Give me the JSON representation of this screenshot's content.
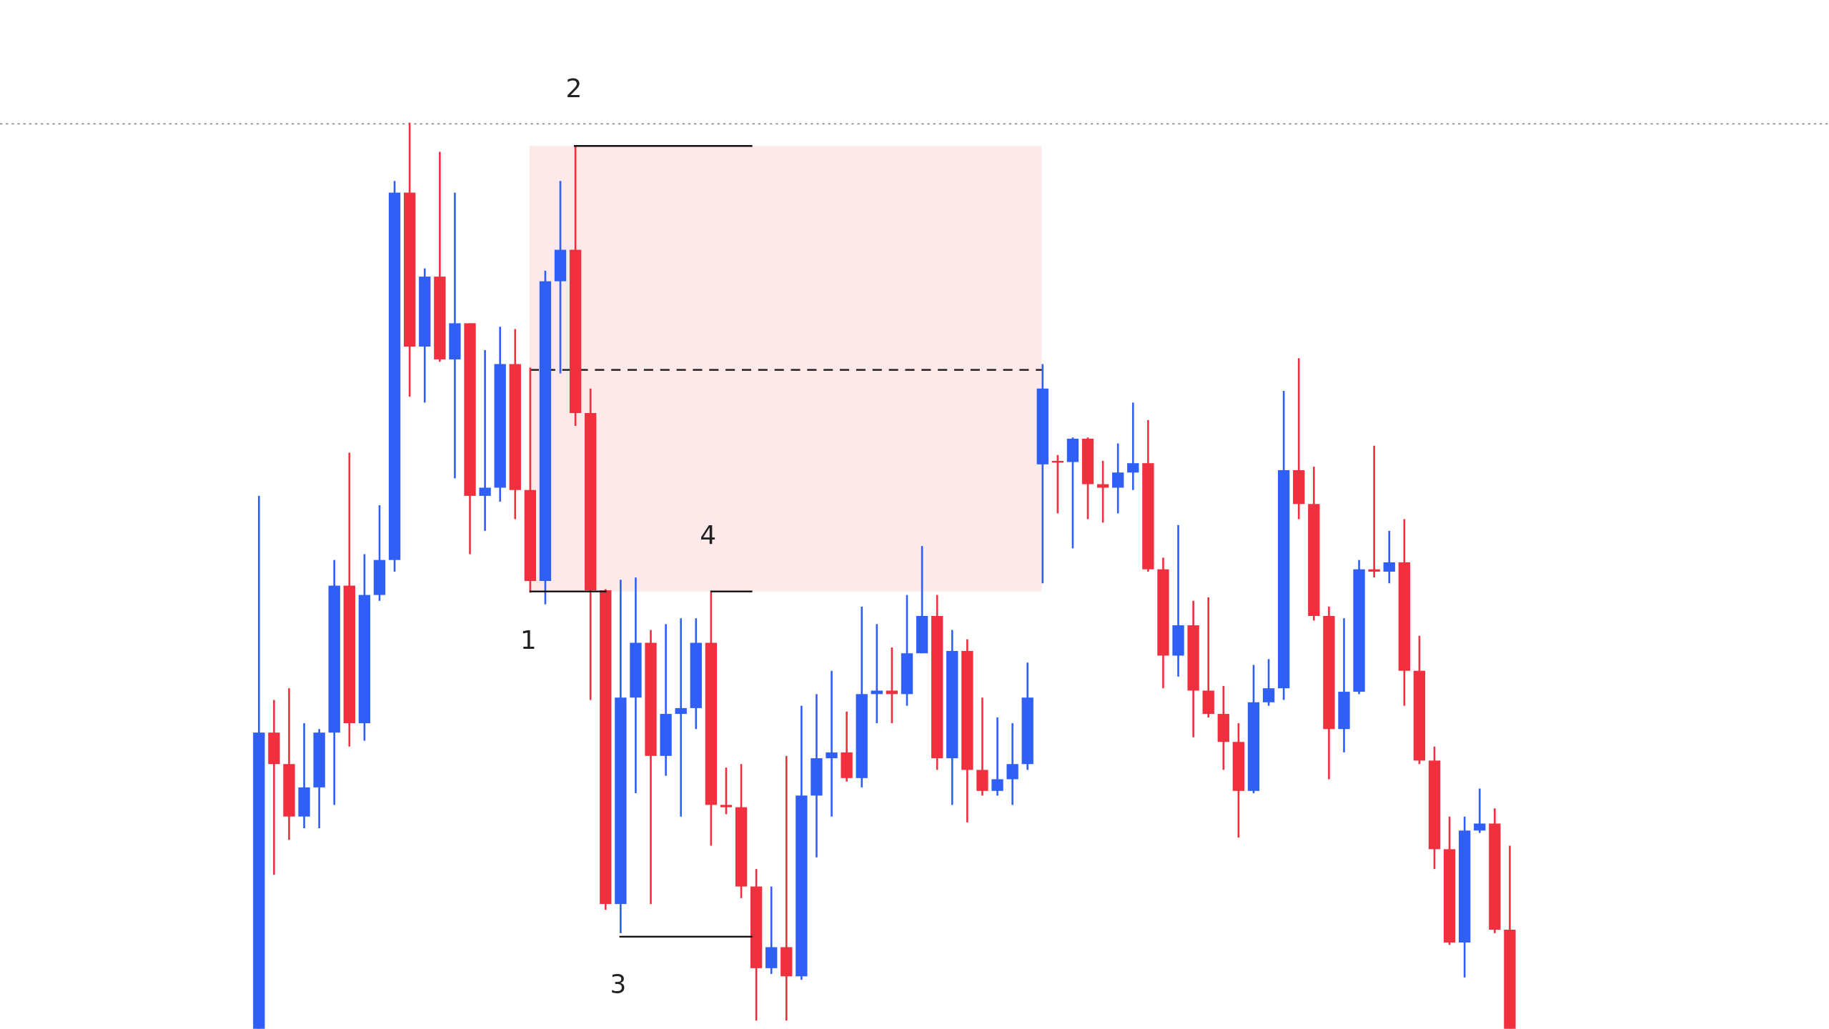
{
  "chart_data": {
    "type": "candlestick",
    "ylim": [
      0,
      882
    ],
    "up_color": "#2f5ff5",
    "down_color": "#f0303f",
    "open": [
      0,
      254,
      227,
      182,
      207,
      254,
      380,
      262,
      372,
      402,
      717,
      585,
      645,
      574,
      605,
      457,
      464,
      570,
      462,
      384,
      641,
      668,
      528,
      376,
      107,
      284,
      331,
      234,
      270,
      275,
      331,
      192,
      190,
      122,
      52,
      70,
      45,
      200,
      232,
      237,
      215,
      287,
      290,
      287,
      322,
      354,
      232,
      324,
      222,
      204,
      214,
      227,
      484,
      487,
      486,
      506,
      467,
      464,
      477,
      485,
      394,
      320,
      346,
      290,
      270,
      246,
      204,
      280,
      292,
      479,
      450,
      354,
      257,
      289,
      394,
      392,
      400,
      307,
      230,
      154,
      74,
      170,
      176,
      85
    ],
    "high": [
      457,
      282,
      292,
      262,
      257,
      402,
      494,
      407,
      449,
      727,
      777,
      652,
      752,
      717,
      605,
      582,
      602,
      600,
      567,
      650,
      727,
      757,
      549,
      377,
      385,
      387,
      342,
      347,
      352,
      352,
      375,
      224,
      227,
      137,
      122,
      234,
      277,
      287,
      307,
      272,
      362,
      347,
      327,
      372,
      414,
      372,
      342,
      334,
      284,
      267,
      262,
      314,
      570,
      492,
      507,
      507,
      487,
      502,
      537,
      522,
      404,
      432,
      367,
      370,
      294,
      262,
      312,
      317,
      547,
      575,
      482,
      362,
      352,
      402,
      500,
      427,
      437,
      337,
      242,
      182,
      182,
      206,
      189,
      157
    ],
    "low": [
      0,
      132,
      162,
      172,
      172,
      192,
      242,
      247,
      367,
      392,
      542,
      537,
      572,
      472,
      407,
      427,
      452,
      437,
      374,
      364,
      562,
      517,
      282,
      102,
      82,
      202,
      107,
      217,
      182,
      257,
      157,
      184,
      112,
      7,
      47,
      7,
      42,
      147,
      182,
      212,
      207,
      262,
      262,
      277,
      322,
      222,
      192,
      177,
      200,
      200,
      192,
      222,
      382,
      442,
      412,
      437,
      434,
      442,
      462,
      392,
      292,
      302,
      250,
      267,
      222,
      164,
      202,
      277,
      282,
      437,
      350,
      214,
      237,
      287,
      387,
      382,
      277,
      227,
      137,
      72,
      44,
      168,
      82,
      0
    ],
    "close": [
      254,
      227,
      182,
      207,
      254,
      380,
      262,
      372,
      402,
      717,
      585,
      645,
      574,
      605,
      457,
      464,
      570,
      462,
      384,
      641,
      668,
      528,
      376,
      107,
      284,
      331,
      234,
      270,
      275,
      331,
      192,
      190,
      122,
      52,
      70,
      45,
      200,
      232,
      237,
      215,
      287,
      290,
      287,
      322,
      354,
      232,
      324,
      222,
      204,
      214,
      227,
      284,
      549,
      486,
      506,
      467,
      464,
      477,
      485,
      394,
      320,
      346,
      290,
      270,
      246,
      204,
      280,
      292,
      479,
      450,
      354,
      257,
      289,
      394,
      392,
      400,
      307,
      230,
      154,
      74,
      170,
      176,
      85,
      0
    ],
    "price_line": 776,
    "zone": {
      "top": 757,
      "bottom": 375,
      "mid": 565,
      "color": "#fde8ea"
    },
    "levels": [
      {
        "label": "1",
        "value": 375
      },
      {
        "label": "2",
        "value": 757
      },
      {
        "label": "3",
        "value": 79
      },
      {
        "label": "4",
        "value": 375
      }
    ]
  }
}
